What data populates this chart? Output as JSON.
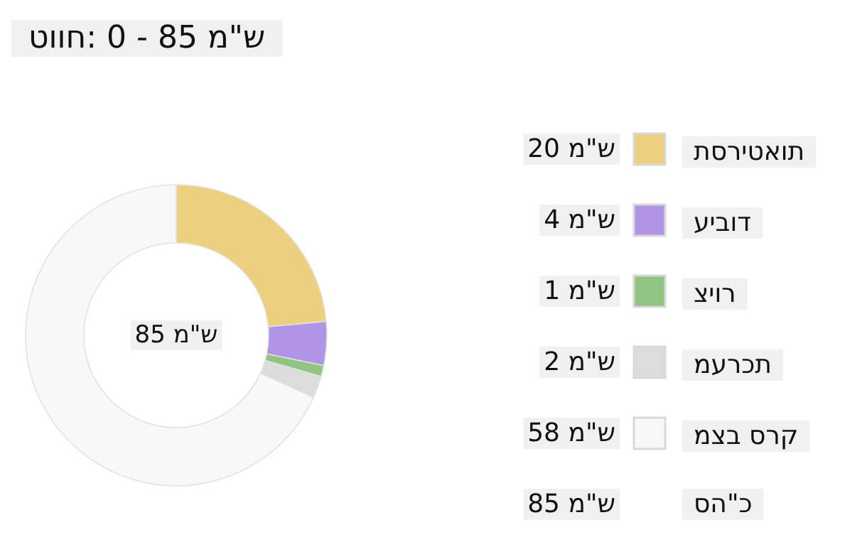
{
  "chart_data": {
    "type": "donut",
    "title": "טווח: 0 - 85 מ\"ש",
    "categories": [
      "תסריטאות",
      "עיבוד",
      "ציור",
      "מערכת",
      "מצב סרק"
    ],
    "values": [
      20,
      4,
      1,
      2,
      58
    ],
    "colors": [
      "#edd07f",
      "#b094e6",
      "#8fc482",
      "#dcdcdc",
      "#f8f8f8"
    ],
    "value_labels": [
      "20 מ\"ש",
      "4 מ\"ש",
      "1 מ\"ש",
      "2 מ\"ש",
      "58 מ\"ש"
    ],
    "annotations": [
      "85 מ\"ש",
      "סה\"כ",
      "85 מ\"ש"
    ],
    "legend": "right"
  }
}
